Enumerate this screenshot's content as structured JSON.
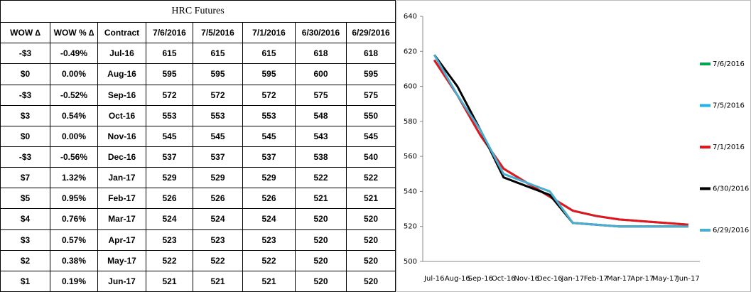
{
  "table": {
    "title": "HRC Futures",
    "headers": [
      "WOW ∆",
      "WOW % ∆",
      "Contract",
      "7/6/2016",
      "7/5/2016",
      "7/1/2016",
      "6/30/2016",
      "6/29/2016"
    ],
    "rows": [
      [
        "-$3",
        "-0.49%",
        "Jul-16",
        "615",
        "615",
        "615",
        "618",
        "618"
      ],
      [
        "$0",
        "0.00%",
        "Aug-16",
        "595",
        "595",
        "595",
        "600",
        "595"
      ],
      [
        "-$3",
        "-0.52%",
        "Sep-16",
        "572",
        "572",
        "572",
        "575",
        "575"
      ],
      [
        "$3",
        "0.54%",
        "Oct-16",
        "553",
        "553",
        "553",
        "548",
        "550"
      ],
      [
        "$0",
        "0.00%",
        "Nov-16",
        "545",
        "545",
        "545",
        "543",
        "545"
      ],
      [
        "-$3",
        "-0.56%",
        "Dec-16",
        "537",
        "537",
        "537",
        "538",
        "540"
      ],
      [
        "$7",
        "1.32%",
        "Jan-17",
        "529",
        "529",
        "529",
        "522",
        "522"
      ],
      [
        "$5",
        "0.95%",
        "Feb-17",
        "526",
        "526",
        "526",
        "521",
        "521"
      ],
      [
        "$4",
        "0.76%",
        "Mar-17",
        "524",
        "524",
        "524",
        "520",
        "520"
      ],
      [
        "$3",
        "0.57%",
        "Apr-17",
        "523",
        "523",
        "523",
        "520",
        "520"
      ],
      [
        "$2",
        "0.38%",
        "May-17",
        "522",
        "522",
        "522",
        "520",
        "520"
      ],
      [
        "$1",
        "0.19%",
        "Jun-17",
        "521",
        "521",
        "521",
        "520",
        "520"
      ]
    ]
  },
  "chart_data": {
    "type": "line",
    "categories": [
      "Jul-16",
      "Aug-16",
      "Sep-16",
      "Oct-16",
      "Nov-16",
      "Dec-16",
      "Jan-17",
      "Feb-17",
      "Mar-17",
      "Apr-17",
      "May-17",
      "Jun-17"
    ],
    "series": [
      {
        "name": "7/6/2016",
        "color": "#00a650",
        "values": [
          615,
          595,
          572,
          553,
          545,
          537,
          529,
          526,
          524,
          523,
          522,
          521
        ]
      },
      {
        "name": "7/5/2016",
        "color": "#1cb4e8",
        "values": [
          615,
          595,
          572,
          553,
          545,
          537,
          529,
          526,
          524,
          523,
          522,
          521
        ]
      },
      {
        "name": "7/1/2016",
        "color": "#e8141b",
        "values": [
          615,
          595,
          572,
          553,
          545,
          537,
          529,
          526,
          524,
          523,
          522,
          521
        ]
      },
      {
        "name": "6/30/2016",
        "color": "#000000",
        "values": [
          618,
          600,
          575,
          548,
          543,
          538,
          522,
          521,
          520,
          520,
          520,
          520
        ]
      },
      {
        "name": "6/29/2016",
        "color": "#4aaed0",
        "values": [
          618,
          595,
          575,
          550,
          545,
          540,
          522,
          521,
          520,
          520,
          520,
          520
        ]
      }
    ],
    "ylim": [
      500,
      640
    ],
    "yticks": [
      500,
      520,
      540,
      560,
      580,
      600,
      620,
      640
    ],
    "grid": false,
    "legend": "right"
  }
}
